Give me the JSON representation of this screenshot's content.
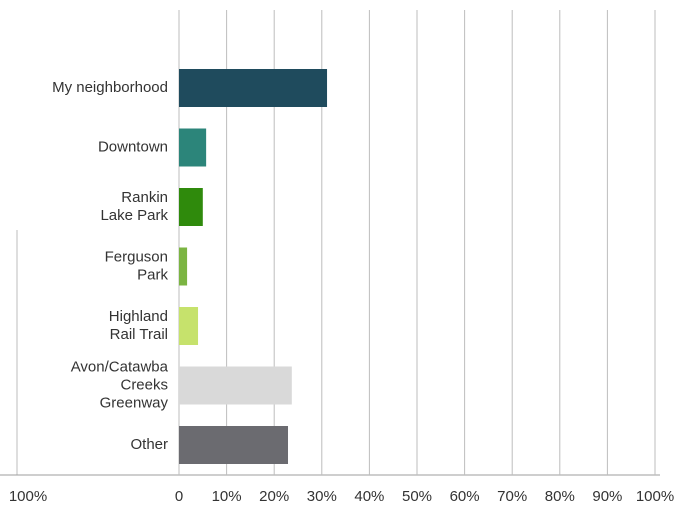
{
  "chart_data": {
    "type": "barh",
    "categories": [
      "My neighborhood",
      "Downtown",
      "Rankin\nLake Park",
      "Ferguson\nPark",
      "Highland\nRail Trail",
      "Avon/Catawba\nCreeks\nGreenway",
      "Other"
    ],
    "values": [
      31.1,
      5.7,
      5.0,
      1.7,
      4.0,
      23.7,
      22.9
    ],
    "colors": [
      "#1f4b5d",
      "#2c857a",
      "#2f8a0c",
      "#7bb442",
      "#c6e26c",
      "#d9d9d9",
      "#6b6b70"
    ],
    "xlim": [
      0,
      100
    ],
    "xticks": [
      0,
      {
        "value": 10,
        "label": "10%"
      },
      {
        "value": 20,
        "label": "20%"
      },
      {
        "value": 30,
        "label": "30%"
      },
      {
        "value": 40,
        "label": "40%"
      },
      {
        "value": 50,
        "label": "50%"
      },
      {
        "value": 60,
        "label": "60%"
      },
      {
        "value": 70,
        "label": "70%"
      },
      {
        "value": 80,
        "label": "80%"
      },
      {
        "value": 90,
        "label": "90%"
      },
      {
        "value": 100,
        "label": "100%"
      }
    ],
    "grid": true
  },
  "fragment": {
    "tick_label": "100%"
  }
}
